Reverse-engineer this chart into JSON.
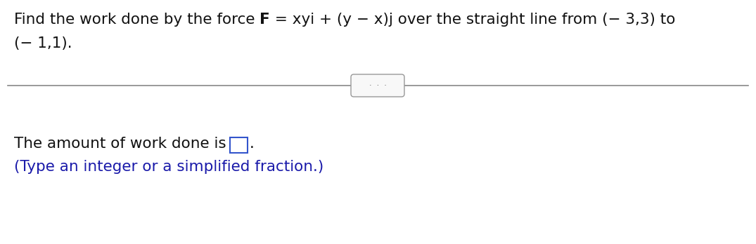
{
  "line1_part1": "Find the work done by the force ",
  "line1_bold": "F",
  "line1_part2": " = xyi + (y − x)j over the straight line from (− 3,3) to",
  "line2": "(− 1,1).",
  "answer_prefix": "The amount of work done is",
  "answer_suffix": ".",
  "hint_text": "(Type an integer or a simplified fraction.)",
  "separator_color": "#888888",
  "separator_linewidth": 1.2,
  "dots_text": "·  ·  ·",
  "dots_box_fill": "#f8f8f8",
  "dots_box_border": "#999999",
  "answer_box_fill": "#ffffff",
  "answer_box_border": "#3355cc",
  "hint_color": "#1a1aaa",
  "text_color": "#111111",
  "background_color": "#ffffff",
  "main_fontsize": 15.5,
  "hint_fontsize": 15.5
}
